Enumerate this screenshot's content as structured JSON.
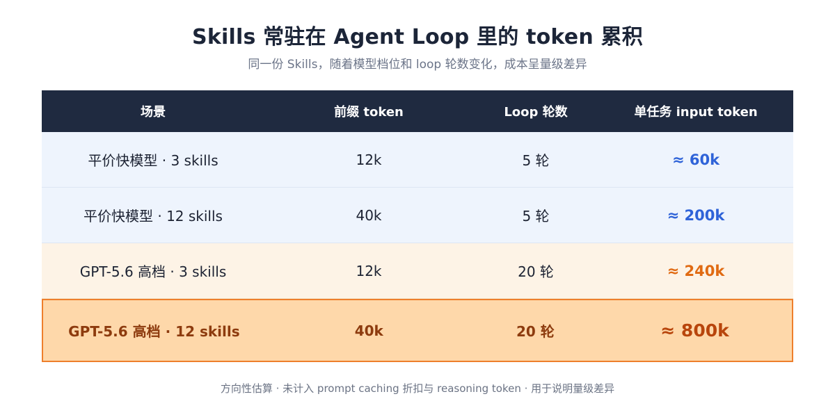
{
  "title": "Skills 常驻在 Agent Loop 里的 token 累积",
  "subtitle": "同一份 Skills，随着模型档位和 loop 轮数变化，成本呈量级差异",
  "table": {
    "headers": [
      "场景",
      "前缀 token",
      "Loop 轮数",
      "单任务 input token"
    ],
    "rows": [
      [
        "平价快模型 · 3 skills",
        "12k",
        "5 轮",
        "≈ 60k"
      ],
      [
        "平价快模型 · 12 skills",
        "40k",
        "5 轮",
        "≈ 200k"
      ],
      [
        "GPT-5.6 高档 · 3 skills",
        "12k",
        "20 轮",
        "≈ 240k"
      ],
      [
        "GPT-5.6 高档 · 12 skills",
        "40k",
        "20 轮",
        "≈ 800k"
      ]
    ]
  },
  "colors": {
    "header_bg": "#1f2a40",
    "blue_row_bg": "#eef4fd",
    "cream_row_bg": "#fdf3e6",
    "highlight_bg": "#fed8aa",
    "highlight_border": "#ee7f2c",
    "blue_accent": "#2f63d8",
    "orange_accent": "#e06a12"
  },
  "footnote": "方向性估算 · 未计入 prompt caching 折扣与 reasoning token · 用于说明量级差异"
}
